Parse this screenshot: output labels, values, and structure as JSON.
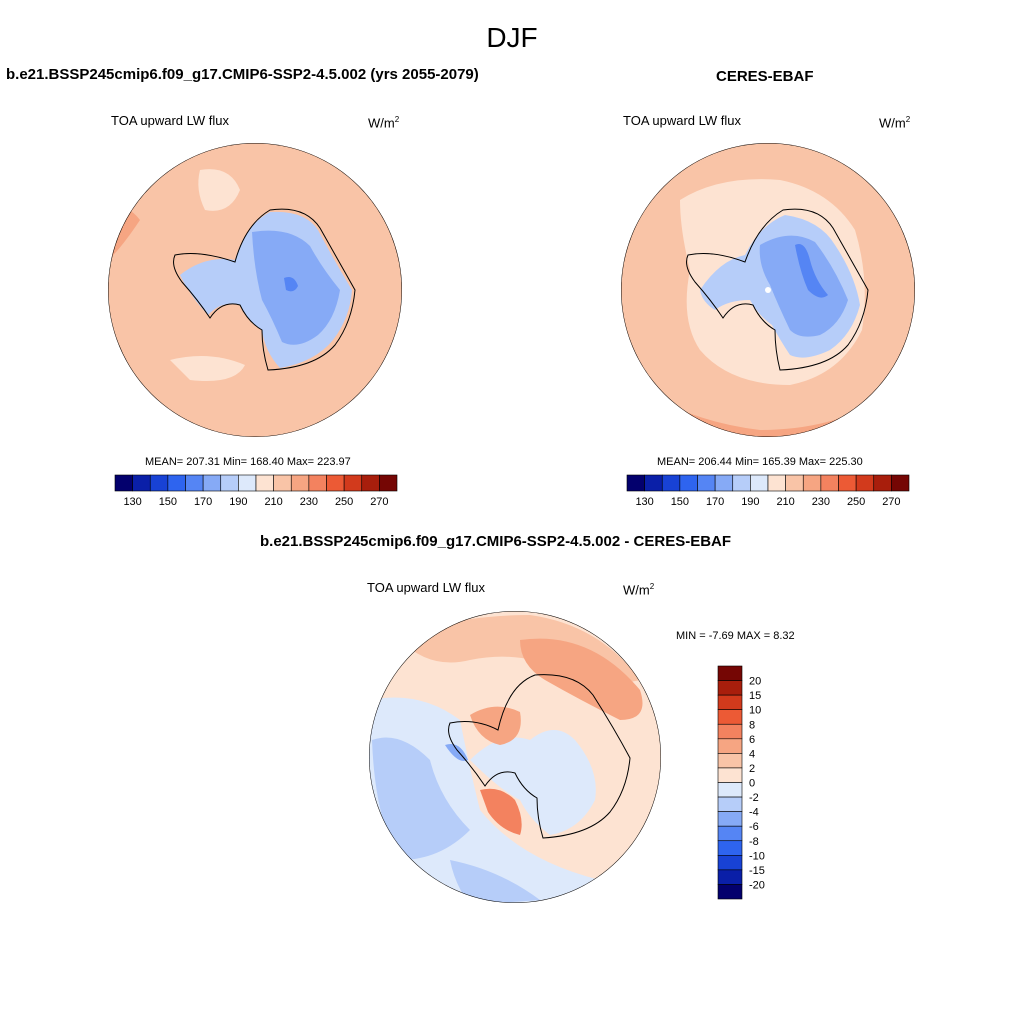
{
  "page": {
    "season": "DJF"
  },
  "panels": [
    {
      "title": "b.e21.BSSP245cmip6.f09_g17.CMIP6-SSP2-4.5.002 (yrs 2055-2079)",
      "variable": "TOA upward LW flux",
      "units_base": "W/m",
      "units_exp": "2",
      "stats": "MEAN= 207.31  Min= 168.40  Max= 223.97"
    },
    {
      "title": "CERES-EBAF",
      "variable": "TOA upward LW flux",
      "units_base": "W/m",
      "units_exp": "2",
      "stats": "MEAN= 206.44  Min= 165.39  Max= 225.30"
    },
    {
      "title": "b.e21.BSSP245cmip6.f09_g17.CMIP6-SSP2-4.5.002 - CERES-EBAF",
      "variable": "TOA upward LW flux",
      "units_base": "W/m",
      "units_exp": "2",
      "stats": "MIN =  -7.69 MAX =   8.32"
    }
  ],
  "colorbars": {
    "absolute": {
      "colors": [
        "#03006d",
        "#0a1fa8",
        "#1842d5",
        "#2e64ef",
        "#5585f4",
        "#86aaf6",
        "#b6cdf9",
        "#dde9fb",
        "#fde3d2",
        "#f9c4a7",
        "#f6a582",
        "#f3825f",
        "#ec5a35",
        "#d23a1c",
        "#a81e0c",
        "#750604"
      ],
      "tick_labels": [
        "130",
        "150",
        "170",
        "190",
        "210",
        "230",
        "250",
        "270"
      ]
    },
    "difference": {
      "colors": [
        "#750604",
        "#a81e0c",
        "#d23a1c",
        "#ec5a35",
        "#f3825f",
        "#f6a582",
        "#f9c4a7",
        "#fde3d2",
        "#dde9fb",
        "#b6cdf9",
        "#86aaf6",
        "#5585f4",
        "#2e64ef",
        "#1842d5",
        "#0a1fa8",
        "#03006d"
      ],
      "tick_labels": [
        "20",
        "15",
        "10",
        "8",
        "6",
        "4",
        "2",
        "0",
        "-2",
        "-4",
        "-6",
        "-8",
        "-10",
        "-15",
        "-20"
      ]
    }
  },
  "colors": {
    "land_ice_low": "#86aaf6",
    "land_ice_mid": "#b6cdf9",
    "ocean_warm": "#f9c4a7",
    "ocean_light": "#fde3d2",
    "diff_positive": "#f6a582",
    "diff_negative": "#dde9fb"
  }
}
